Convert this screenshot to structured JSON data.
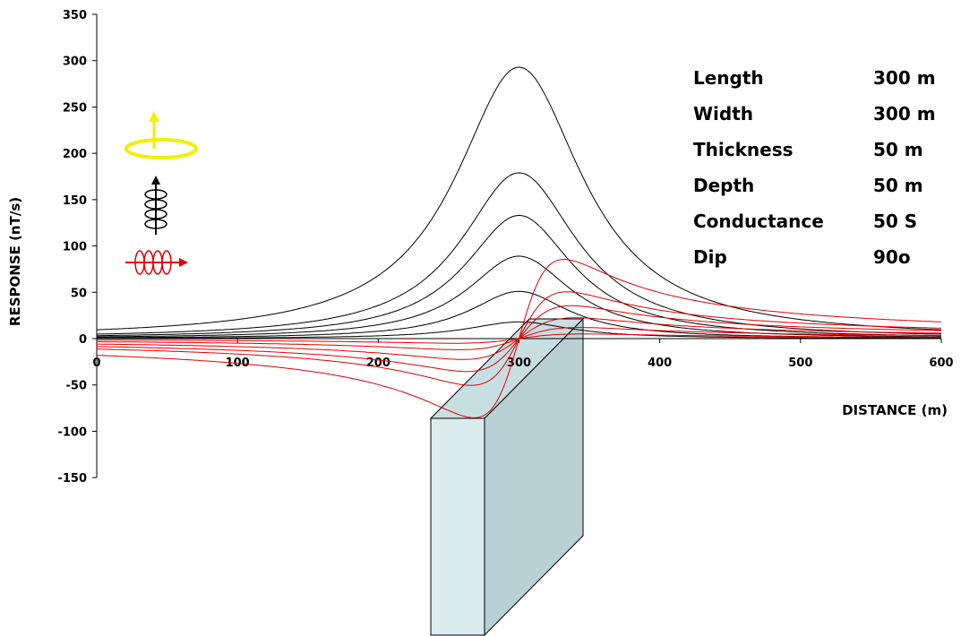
{
  "chart_data": {
    "type": "line",
    "title": "",
    "xlabel": "DISTANCE (m)",
    "ylabel": "RESPONSE (nT/s)",
    "xlim": [
      0,
      600
    ],
    "ylim": [
      -150,
      350
    ],
    "x_ticks": [
      0,
      100,
      200,
      300,
      400,
      500,
      600
    ],
    "y_ticks": [
      -150,
      -100,
      -50,
      0,
      50,
      100,
      150,
      200,
      250,
      300,
      350
    ],
    "grid": false,
    "colors": {
      "vertical": "#000000",
      "horizontal": "#e00000",
      "loop_icon": "#f0f000",
      "plate_front": "#daecee",
      "plate_side": "#b9d1d4"
    },
    "series_vertical": [
      {
        "peak_x": 300,
        "peak_y": 293,
        "half_width": 55
      },
      {
        "peak_x": 300,
        "peak_y": 179,
        "half_width": 50
      },
      {
        "peak_x": 300,
        "peak_y": 133,
        "half_width": 47
      },
      {
        "peak_x": 300,
        "peak_y": 89,
        "half_width": 45
      },
      {
        "peak_x": 300,
        "peak_y": 51,
        "half_width": 43
      },
      {
        "peak_x": 300,
        "peak_y": 18,
        "half_width": 45
      }
    ],
    "series_horizontal": [
      {
        "crossover_x": 300,
        "min_x": 268,
        "min_y": -85,
        "max_x": 332,
        "max_y": 86
      },
      {
        "crossover_x": 300,
        "min_x": 266,
        "min_y": -50,
        "max_x": 334,
        "max_y": 51
      },
      {
        "crossover_x": 300,
        "min_x": 263,
        "min_y": -35,
        "max_x": 337,
        "max_y": 36
      },
      {
        "crossover_x": 300,
        "min_x": 260,
        "min_y": -22,
        "max_x": 340,
        "max_y": 23
      },
      {
        "crossover_x": 300,
        "min_x": 257,
        "min_y": -12,
        "max_x": 343,
        "max_y": 12
      },
      {
        "crossover_x": 300,
        "min_x": 254,
        "min_y": -5,
        "max_x": 346,
        "max_y": 5
      }
    ]
  },
  "parameters": [
    {
      "label": "Length",
      "value": "300 m"
    },
    {
      "label": "Width",
      "value": "300 m"
    },
    {
      "label": "Thickness",
      "value": "50 m"
    },
    {
      "label": "Depth",
      "value": "50 m"
    },
    {
      "label": "Conductance",
      "value": "50 S"
    },
    {
      "label": "Dip",
      "value": "90o"
    }
  ],
  "icons": {
    "horizontal_loop": "yellow-loop-with-up-arrow-icon",
    "vertical_coil": "black-coil-with-up-arrow-icon",
    "horizontal_coil": "red-coil-with-right-arrow-icon"
  }
}
